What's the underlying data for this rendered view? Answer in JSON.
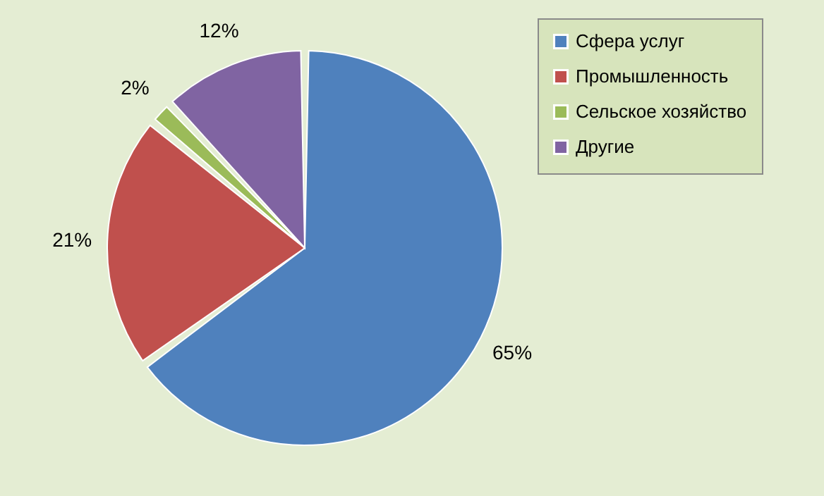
{
  "chart_data": {
    "type": "pie",
    "categories": [
      "Сфера услуг",
      "Промышленность",
      "Сельское хозяйство",
      "Другие"
    ],
    "values": [
      65,
      21,
      2,
      12
    ],
    "colors": [
      "#4f81bd",
      "#c0504d",
      "#9bbb59",
      "#8064a2"
    ],
    "value_labels": [
      "65%",
      "21%",
      "2%",
      "12%"
    ],
    "legend": "top right"
  }
}
